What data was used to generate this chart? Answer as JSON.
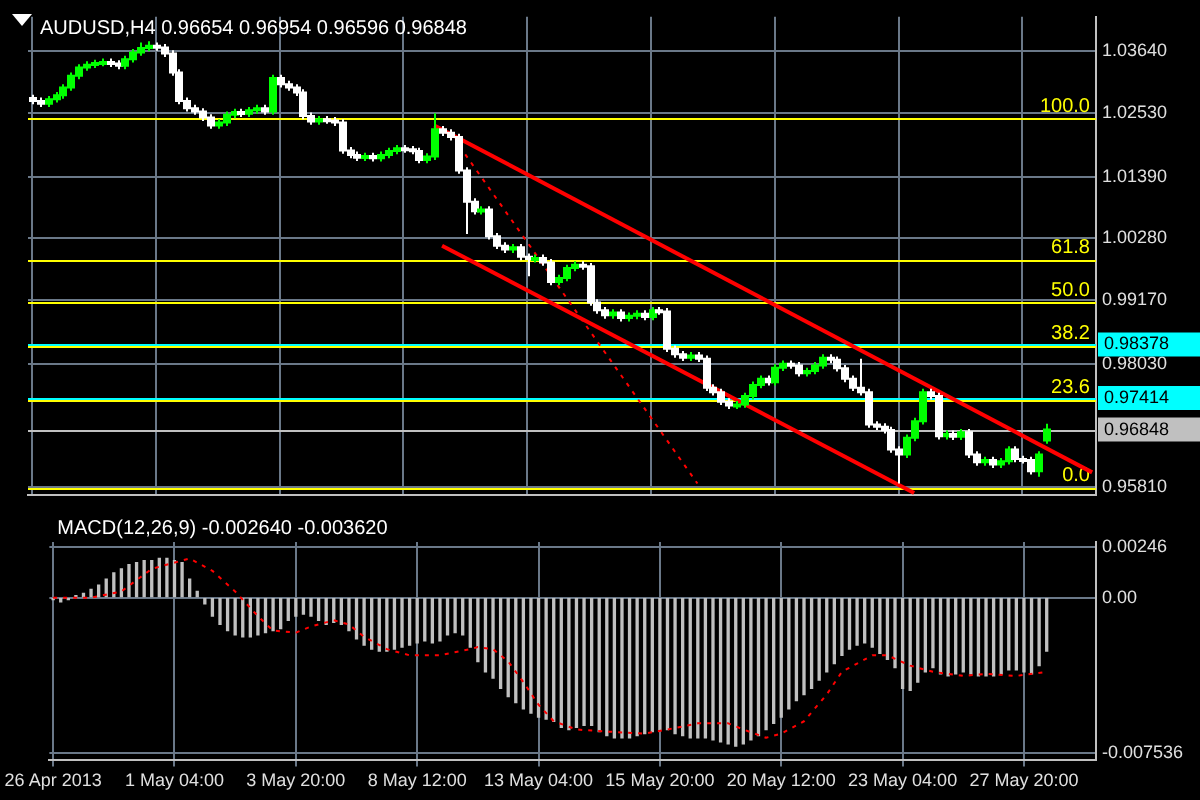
{
  "chart_data": [
    {
      "type": "candlestick",
      "title": "AUDUSD,H4 0.96654 0.96954 0.96596 0.96848",
      "colors": [
        "#ffffff",
        "#ffffff",
        "#00ff00",
        "#00ff00",
        "#00ff00",
        "#00ff00",
        "#00ff00",
        "#00ff00",
        "#00ff00",
        "#00ff00",
        "#ffffff",
        "#ffffff",
        "#00ff00",
        "#00ff00",
        "#00ff00",
        "#00ff00",
        "#ffffff",
        "#ffffff",
        "#ffffff",
        "#ffffff",
        "#ffffff",
        "#ffffff",
        "#ffffff",
        "#ffffff",
        "#00ff00",
        "#00ff00",
        "#00ff00",
        "#ffffff",
        "#00ff00",
        "#00ff00",
        "#ffffff",
        "#00ff00",
        "#ffffff",
        "#ffffff",
        "#ffffff",
        "#ffffff",
        "#ffffff",
        "#00ff00",
        "#ffffff",
        "#ffffff",
        "#ffffff",
        "#ffffff",
        "#ffffff",
        "#00ff00",
        "#ffffff",
        "#00ff00",
        "#00ff00",
        "#00ff00",
        "#ffffff",
        "#ffffff",
        "#ffffff",
        "#00ff00",
        "#00ff00",
        "#ffffff",
        "#ffffff",
        "#ffffff",
        "#ffffff",
        "#ffffff",
        "#00ff00",
        "#ffffff",
        "#ffffff",
        "#ffffff",
        "#00ff00",
        "#ffffff",
        "#ffffff",
        "#00ff00",
        "#ffffff",
        "#ffffff",
        "#00ff00",
        "#00ff00",
        "#00ff00",
        "#ffffff",
        "#ffffff",
        "#ffffff",
        "#ffffff",
        "#00ff00",
        "#ffffff",
        "#00ff00",
        "#00ff00",
        "#ffffff",
        "#00ff00",
        "#ffffff",
        "#ffffff",
        "#ffffff",
        "#ffffff",
        "#00ff00",
        "#ffffff",
        "#ffffff",
        "#ffffff",
        "#ffffff",
        "#ffffff",
        "#00ff00",
        "#00ff00",
        "#00ff00",
        "#00ff00",
        "#ffffff",
        "#00ff00",
        "#00ff00",
        "#ffffff",
        "#ffffff",
        "#00ff00",
        "#00ff00",
        "#00ff00",
        "#ffffff",
        "#ffffff",
        "#ffffff",
        "#ffffff",
        "#ffffff",
        "#ffffff",
        "#ffffff",
        "#ffffff",
        "#ffffff",
        "#ffffff",
        "#00ff00",
        "#00ff00",
        "#00ff00",
        "#ffffff",
        "#ffffff",
        "#00ff00",
        "#ffffff",
        "#00ff00",
        "#ffffff",
        "#ffffff",
        "#00ff00",
        "#ffffff",
        "#00ff00",
        "#00ff00",
        "#ffffff",
        "#ffffff",
        "#ffffff",
        "#00ff00",
        "#00ff00",
        null,
        null,
        null,
        null,
        null,
        null
      ],
      "categories": [
        null,
        null,
        null,
        null,
        null,
        null,
        null,
        null,
        null,
        null,
        null,
        null,
        null,
        null,
        null,
        null,
        null,
        null,
        null,
        null,
        null,
        null,
        null,
        null,
        null,
        null,
        null,
        null,
        null,
        null,
        null,
        null,
        null,
        null,
        null,
        null,
        null,
        null,
        null,
        null,
        null,
        null,
        null,
        null,
        null,
        null,
        null,
        null,
        null,
        null,
        null,
        null,
        null,
        null,
        null,
        null,
        null,
        null,
        null,
        null,
        null,
        null,
        null,
        null,
        null,
        null,
        null,
        null,
        null,
        null,
        null,
        null,
        null,
        null,
        null,
        null,
        null,
        null,
        null,
        null,
        null,
        null,
        null,
        null,
        null,
        null,
        null,
        null,
        null,
        null,
        null,
        null,
        null,
        null,
        null,
        null,
        null,
        null,
        null,
        null,
        null,
        null,
        null,
        null,
        null,
        null,
        null,
        null,
        null,
        null,
        null,
        null,
        null,
        null,
        null,
        null,
        null,
        null,
        null,
        null,
        null,
        null,
        null,
        null,
        null,
        null,
        null,
        null,
        null,
        null,
        null,
        null,
        null,
        null,
        null,
        null,
        null,
        null
      ],
      "ohlc": [
        [
          1.028,
          1.0286,
          1.0269,
          1.0275
        ],
        [
          1.0275,
          1.0281,
          1.0264,
          1.027
        ],
        [
          1.027,
          1.0284,
          1.0264,
          1.0278
        ],
        [
          1.0278,
          1.0291,
          1.0272,
          1.0285
        ],
        [
          1.0285,
          1.0305,
          1.0279,
          1.0299
        ],
        [
          1.0299,
          1.0326,
          1.0293,
          1.032
        ],
        [
          1.032,
          1.0341,
          1.0314,
          1.0335
        ],
        [
          1.0335,
          1.0346,
          1.0329,
          1.034
        ],
        [
          1.034,
          1.0349,
          1.0334,
          1.0343
        ],
        [
          1.0343,
          1.0351,
          1.0337,
          1.0345
        ],
        [
          1.0345,
          1.0351,
          1.0336,
          1.0342
        ],
        [
          1.0342,
          1.0348,
          1.0332,
          1.0338
        ],
        [
          1.0338,
          1.0356,
          1.0332,
          1.035
        ],
        [
          1.035,
          1.0368,
          1.0344,
          1.0362
        ],
        [
          1.0362,
          1.038,
          1.0356,
          1.037
        ],
        [
          1.037,
          1.0382,
          1.0364,
          1.0374
        ],
        [
          1.0374,
          1.038,
          1.0365,
          1.0371
        ],
        [
          1.0371,
          1.0377,
          1.0354,
          1.036
        ],
        [
          1.036,
          1.0366,
          1.032,
          1.0326
        ],
        [
          1.0326,
          1.0332,
          1.0269,
          1.0275
        ],
        [
          1.0275,
          1.0281,
          1.0256,
          1.0262
        ],
        [
          1.0262,
          1.0268,
          1.025,
          1.0256
        ],
        [
          1.0256,
          1.0262,
          1.0239,
          1.0245
        ],
        [
          1.0245,
          1.0251,
          1.0225,
          1.0231
        ],
        [
          1.0231,
          1.0242,
          1.0225,
          1.0236
        ],
        [
          1.0236,
          1.0256,
          1.023,
          1.025
        ],
        [
          1.025,
          1.0261,
          1.0244,
          1.0255
        ],
        [
          1.0255,
          1.0261,
          1.0246,
          1.0252
        ],
        [
          1.0252,
          1.0264,
          1.0246,
          1.0258
        ],
        [
          1.0258,
          1.0268,
          1.0252,
          1.0262
        ],
        [
          1.0262,
          1.0268,
          1.025,
          1.0256
        ],
        [
          1.0256,
          1.0322,
          1.025,
          1.0316
        ],
        [
          1.0316,
          1.0322,
          1.0299,
          1.0305
        ],
        [
          1.0305,
          1.0311,
          1.0293,
          1.0299
        ],
        [
          1.0299,
          1.0305,
          1.0284,
          1.029
        ],
        [
          1.029,
          1.0296,
          1.0242,
          1.0248
        ],
        [
          1.0248,
          1.0254,
          1.0232,
          1.0238
        ],
        [
          1.0238,
          1.0248,
          1.0232,
          1.0242
        ],
        [
          1.0242,
          1.0248,
          1.0234,
          1.024
        ],
        [
          1.024,
          1.0246,
          1.023,
          1.0236
        ],
        [
          1.0236,
          1.0242,
          1.018,
          1.0186
        ],
        [
          1.0186,
          1.0192,
          1.0172,
          1.0178
        ],
        [
          1.0178,
          1.0184,
          1.0167,
          1.0173
        ],
        [
          1.0173,
          1.0182,
          1.0167,
          1.0176
        ],
        [
          1.0176,
          1.0182,
          1.0166,
          1.0172
        ],
        [
          1.0172,
          1.0184,
          1.0166,
          1.0178
        ],
        [
          1.0178,
          1.0191,
          1.0172,
          1.0185
        ],
        [
          1.0185,
          1.0196,
          1.0179,
          1.019
        ],
        [
          1.019,
          1.0196,
          1.0182,
          1.0188
        ],
        [
          1.0188,
          1.0194,
          1.0179,
          1.0185
        ],
        [
          1.0185,
          1.0191,
          1.0163,
          1.0169
        ],
        [
          1.0169,
          1.0181,
          1.0163,
          1.0175
        ],
        [
          1.0175,
          1.0253,
          1.0169,
          1.0224
        ],
        [
          1.0224,
          1.023,
          1.0212,
          1.0218
        ],
        [
          1.0218,
          1.0224,
          1.0204,
          1.021
        ],
        [
          1.021,
          1.0216,
          1.0144,
          1.015
        ],
        [
          1.015,
          1.0156,
          1.0036,
          1.0094
        ],
        [
          1.0094,
          1.01,
          1.0071,
          1.0077
        ],
        [
          1.0077,
          1.0086,
          1.0071,
          1.008
        ],
        [
          1.008,
          1.0086,
          1.0026,
          1.0032
        ],
        [
          1.0032,
          1.0038,
          1.0009,
          1.0015
        ],
        [
          1.0015,
          1.0021,
          1.0002,
          1.0008
        ],
        [
          1.0008,
          1.0018,
          1.0002,
          1.0012
        ],
        [
          1.0012,
          1.0018,
          0.9989,
          0.9995
        ],
        [
          0.9995,
          1.0001,
          0.996,
          0.9991
        ],
        [
          0.9991,
          0.9999,
          0.9985,
          0.9993
        ],
        [
          0.9993,
          0.9999,
          0.9979,
          0.9985
        ],
        [
          0.9985,
          0.9991,
          0.9944,
          0.995
        ],
        [
          0.995,
          0.9963,
          0.9944,
          0.9957
        ],
        [
          0.9957,
          0.9981,
          0.9951,
          0.9975
        ],
        [
          0.9975,
          0.9987,
          0.9969,
          0.9981
        ],
        [
          0.9981,
          0.9987,
          0.9972,
          0.9978
        ],
        [
          0.9978,
          0.9984,
          0.9907,
          0.9913
        ],
        [
          0.9913,
          0.9919,
          0.9893,
          0.9899
        ],
        [
          0.9899,
          0.9905,
          0.9884,
          0.989
        ],
        [
          0.989,
          0.9901,
          0.9884,
          0.9895
        ],
        [
          0.9895,
          0.9901,
          0.9879,
          0.9885
        ],
        [
          0.9885,
          0.9895,
          0.9879,
          0.9889
        ],
        [
          0.9889,
          0.9899,
          0.9883,
          0.9893
        ],
        [
          0.9893,
          0.9899,
          0.9881,
          0.9887
        ],
        [
          0.9887,
          0.9905,
          0.9881,
          0.9899
        ],
        [
          0.9899,
          0.9905,
          0.9891,
          0.9897
        ],
        [
          0.9897,
          0.9903,
          0.9824,
          0.983
        ],
        [
          0.983,
          0.9836,
          0.9814,
          0.982
        ],
        [
          0.982,
          0.9826,
          0.9808,
          0.9814
        ],
        [
          0.9814,
          0.9824,
          0.9808,
          0.9818
        ],
        [
          0.9818,
          0.9824,
          0.9806,
          0.9812
        ],
        [
          0.9812,
          0.9818,
          0.9754,
          0.976
        ],
        [
          0.976,
          0.9766,
          0.9746,
          0.9752
        ],
        [
          0.9752,
          0.9758,
          0.9729,
          0.9735
        ],
        [
          0.9735,
          0.9741,
          0.9722,
          0.9728
        ],
        [
          0.9728,
          0.9736,
          0.9722,
          0.973
        ],
        [
          0.973,
          0.9751,
          0.9724,
          0.9745
        ],
        [
          0.9745,
          0.9771,
          0.9739,
          0.9765
        ],
        [
          0.9765,
          0.9782,
          0.9759,
          0.9776
        ],
        [
          0.9776,
          0.9782,
          0.9764,
          0.977
        ],
        [
          0.977,
          0.9802,
          0.9764,
          0.9796
        ],
        [
          0.9796,
          0.9809,
          0.979,
          0.9803
        ],
        [
          0.9803,
          0.9809,
          0.9794,
          0.98
        ],
        [
          0.98,
          0.9806,
          0.978,
          0.9786
        ],
        [
          0.9786,
          0.9796,
          0.978,
          0.979
        ],
        [
          0.979,
          0.9806,
          0.9784,
          0.98
        ],
        [
          0.98,
          0.982,
          0.9794,
          0.9814
        ],
        [
          0.9814,
          0.982,
          0.9804,
          0.981
        ],
        [
          0.981,
          0.9816,
          0.9789,
          0.9795
        ],
        [
          0.9795,
          0.9801,
          0.977,
          0.9776
        ],
        [
          0.9776,
          0.9782,
          0.9754,
          0.976
        ],
        [
          0.976,
          0.9812,
          0.9746,
          0.9752
        ],
        [
          0.9752,
          0.9758,
          0.9688,
          0.9694
        ],
        [
          0.9694,
          0.97,
          0.9684,
          0.969
        ],
        [
          0.969,
          0.9696,
          0.9678,
          0.9684
        ],
        [
          0.9684,
          0.969,
          0.9643,
          0.9649
        ],
        [
          0.9649,
          0.9655,
          0.9588,
          0.964
        ],
        [
          0.964,
          0.9676,
          0.9634,
          0.967
        ],
        [
          0.967,
          0.9706,
          0.9664,
          0.97
        ],
        [
          0.97,
          0.9758,
          0.9694,
          0.9752
        ],
        [
          0.9752,
          0.9758,
          0.9739,
          0.9745
        ],
        [
          0.9745,
          0.9751,
          0.9667,
          0.9673
        ],
        [
          0.9673,
          0.9683,
          0.9667,
          0.9677
        ],
        [
          0.9677,
          0.9683,
          0.9666,
          0.9672
        ],
        [
          0.9672,
          0.9686,
          0.9666,
          0.968
        ],
        [
          0.968,
          0.9686,
          0.9634,
          0.964
        ],
        [
          0.964,
          0.9646,
          0.962,
          0.9626
        ],
        [
          0.9626,
          0.9636,
          0.962,
          0.963
        ],
        [
          0.963,
          0.9636,
          0.9616,
          0.9622
        ],
        [
          0.9622,
          0.9634,
          0.9616,
          0.9628
        ],
        [
          0.9628,
          0.9655,
          0.9622,
          0.9649
        ],
        [
          0.9649,
          0.9655,
          0.9626,
          0.9632
        ],
        [
          0.9632,
          0.9638,
          0.9624,
          0.963
        ],
        [
          0.963,
          0.9636,
          0.9604,
          0.961
        ],
        [
          0.961,
          0.9646,
          0.96,
          0.964
        ],
        [
          0.96654,
          0.96954,
          0.96596,
          0.96848
        ],
        null,
        null,
        null,
        null,
        null,
        null
      ],
      "series": [
        {
          "type": "line",
          "color": "#ff0000",
          "line_style": "solid",
          "values": [
            null,
            null,
            null,
            null,
            null,
            null,
            null,
            null,
            null,
            null,
            null,
            null,
            null,
            null,
            null,
            null,
            null,
            null,
            null,
            null,
            null,
            null,
            null,
            null,
            null,
            null,
            null,
            null,
            null,
            null,
            null,
            null,
            null,
            null,
            null,
            null,
            null,
            null,
            null,
            null,
            null,
            null,
            null,
            null,
            null,
            null,
            null,
            null,
            null,
            null,
            null,
            null,
            1.0231,
            null,
            null,
            null,
            null,
            null,
            null,
            null,
            null,
            null,
            null,
            null,
            null,
            null,
            null,
            null,
            null,
            null,
            null,
            null,
            null,
            null,
            null,
            null,
            null,
            null,
            null,
            null,
            null,
            null,
            null,
            null,
            null,
            null,
            null,
            null,
            null,
            null,
            null,
            null,
            null,
            null,
            null,
            null,
            null,
            null,
            null,
            null,
            null,
            null,
            null,
            null,
            null,
            null,
            null,
            null,
            null,
            null,
            null,
            null,
            null,
            null,
            null,
            null,
            null,
            null,
            null,
            null,
            null,
            null,
            null,
            null,
            null,
            null,
            null,
            null,
            null,
            null,
            null,
            null,
            null,
            null,
            null,
            null,
            null,
            0.9608
          ]
        },
        {
          "type": "line",
          "color": "#ff0000",
          "line_style": "solid",
          "values": [
            null,
            null,
            null,
            null,
            null,
            null,
            null,
            null,
            null,
            null,
            null,
            null,
            null,
            null,
            null,
            null,
            null,
            null,
            null,
            null,
            null,
            null,
            null,
            null,
            null,
            null,
            null,
            null,
            null,
            null,
            null,
            null,
            null,
            null,
            null,
            null,
            null,
            null,
            null,
            null,
            null,
            null,
            null,
            null,
            null,
            null,
            null,
            null,
            null,
            null,
            null,
            null,
            null,
            1.0015,
            null,
            null,
            null,
            null,
            null,
            null,
            null,
            null,
            null,
            null,
            null,
            null,
            null,
            null,
            null,
            null,
            null,
            null,
            null,
            null,
            null,
            null,
            null,
            null,
            null,
            null,
            null,
            null,
            null,
            null,
            null,
            null,
            null,
            null,
            null,
            null,
            null,
            null,
            null,
            null,
            null,
            null,
            null,
            null,
            null,
            null,
            null,
            null,
            null,
            null,
            null,
            null,
            null,
            null,
            null,
            null,
            null,
            null,
            null,
            null,
            0.9571,
            null,
            null,
            null,
            null,
            null,
            null,
            null,
            null,
            null,
            null,
            null,
            null,
            null,
            null,
            null,
            null,
            null,
            null,
            null,
            null,
            null,
            null,
            null
          ]
        },
        {
          "type": "line",
          "color": "#ff0000",
          "line_style": "dotted",
          "values": [
            null,
            null,
            null,
            null,
            null,
            null,
            null,
            null,
            null,
            null,
            null,
            null,
            null,
            null,
            null,
            null,
            null,
            null,
            null,
            null,
            null,
            null,
            null,
            null,
            null,
            null,
            null,
            null,
            null,
            null,
            null,
            null,
            null,
            null,
            null,
            null,
            null,
            null,
            null,
            null,
            null,
            null,
            null,
            null,
            null,
            null,
            null,
            null,
            null,
            null,
            null,
            null,
            null,
            null,
            null,
            null,
            1.0179,
            null,
            null,
            null,
            null,
            null,
            null,
            null,
            null,
            null,
            null,
            null,
            null,
            null,
            null,
            null,
            null,
            null,
            null,
            null,
            null,
            null,
            null,
            null,
            null,
            null,
            null,
            null,
            null,
            null,
            0.9588,
            null,
            null,
            null,
            null,
            null,
            null,
            null,
            null,
            null,
            null,
            null,
            null,
            null,
            null,
            null,
            null,
            null,
            null,
            null,
            null,
            null,
            null,
            null,
            null,
            null,
            null,
            null,
            null,
            null,
            null,
            null,
            null,
            null,
            null,
            null,
            null,
            null,
            null,
            null,
            null,
            null,
            null,
            null,
            null,
            null,
            null,
            null,
            null,
            null,
            null,
            null
          ]
        }
      ],
      "ylim": [
        0.9567,
        1.0426
      ],
      "yticks": [
        {
          "value": 1.0364,
          "label": "1.03640"
        },
        {
          "value": 1.0253,
          "label": "1.02530"
        },
        {
          "value": 1.0139,
          "label": "1.01390"
        },
        {
          "value": 1.0028,
          "label": "1.00280"
        },
        {
          "value": 0.9917,
          "label": "0.99170"
        },
        {
          "value": 0.9803,
          "label": "0.98030"
        },
        {
          "value": 0.9581,
          "label": "0.95810"
        }
      ],
      "ref_lines": [
        {
          "axis": "y",
          "value": 1.0244,
          "color": "#ffff00"
        },
        {
          "axis": "y",
          "value": 0.9991,
          "color": "#ffff00"
        },
        {
          "axis": "y",
          "value": 0.9913,
          "color": "#ffff00"
        },
        {
          "axis": "y",
          "value": 0.9835,
          "color": "#ffff00"
        },
        {
          "axis": "y",
          "value": 0.9738,
          "color": "#ffff00"
        },
        {
          "axis": "y",
          "value": 0.9581,
          "color": "#ffff00"
        },
        {
          "axis": "y",
          "value": 0.98378,
          "label": "0.98378",
          "color": "#00ffff"
        },
        {
          "axis": "y",
          "value": 0.97414,
          "label": "0.97414",
          "color": "#00ffff"
        },
        {
          "axis": "y",
          "value": 0.96848,
          "label": "0.96848",
          "color": "#c0c0c0"
        }
      ],
      "annotations": [
        {
          "text": "100.0",
          "y": 1.0244
        },
        {
          "text": "61.8",
          "y": 0.9991
        },
        {
          "text": "50.0",
          "y": 0.9913
        },
        {
          "text": "38.2",
          "y": 0.9835
        },
        {
          "text": "23.6",
          "y": 0.9738
        },
        {
          "text": "0.0",
          "y": 0.9581
        }
      ],
      "grid": true,
      "tick_labels": "y"
    },
    {
      "type": "bar",
      "title": "MACD(12,26,9) -0.002640 -0.003620",
      "categories": [
        "26 Apr 2013",
        null,
        null,
        null,
        null,
        null,
        null,
        null,
        null,
        null,
        null,
        null,
        null,
        null,
        null,
        null,
        "1 May 04:00",
        null,
        null,
        null,
        null,
        null,
        null,
        null,
        null,
        null,
        null,
        null,
        null,
        null,
        null,
        null,
        "3 May 20:00",
        null,
        null,
        null,
        null,
        null,
        null,
        null,
        null,
        null,
        null,
        null,
        null,
        null,
        null,
        null,
        "8 May 12:00",
        null,
        null,
        null,
        null,
        null,
        null,
        null,
        null,
        null,
        null,
        null,
        null,
        null,
        null,
        null,
        "13 May 04:00",
        null,
        null,
        null,
        null,
        null,
        null,
        null,
        null,
        null,
        null,
        null,
        null,
        null,
        null,
        null,
        "15 May 20:00",
        null,
        null,
        null,
        null,
        null,
        null,
        null,
        null,
        null,
        null,
        null,
        null,
        null,
        null,
        null,
        "20 May 12:00",
        null,
        null,
        null,
        null,
        null,
        null,
        null,
        null,
        null,
        null,
        null,
        null,
        null,
        null,
        null,
        "23 May 04:00",
        null,
        null,
        null,
        null,
        null,
        null,
        null,
        null,
        null,
        null,
        null,
        null,
        null,
        null,
        null,
        "27 May 20:00",
        null,
        null,
        null,
        null,
        null,
        null,
        null,
        null,
        null
      ],
      "series": [
        {
          "type": "bar",
          "color": "#c0c0c0",
          "values": [
            -0.0001,
            -0.0002,
            -0.0001,
            0.0001,
            0.0002,
            0.0004,
            0.0006,
            0.0009,
            0.0012,
            0.0014,
            0.0016,
            0.0017,
            0.0018,
            0.0018,
            0.0019,
            0.0019,
            0.0018,
            0.0017,
            0.0009,
            0.0003,
            -0.0003,
            -0.0009,
            -0.0013,
            -0.0016,
            -0.0018,
            -0.0019,
            -0.0019,
            -0.0018,
            -0.0017,
            -0.0016,
            -0.0015,
            -0.0011,
            -0.0009,
            -0.0008,
            -0.0009,
            -0.0011,
            -0.0013,
            -0.0012,
            -0.0013,
            -0.0016,
            -0.002,
            -0.0023,
            -0.0025,
            -0.0026,
            -0.0026,
            -0.0025,
            -0.0024,
            -0.0023,
            -0.0022,
            -0.0021,
            -0.0022,
            -0.0021,
            -0.0018,
            -0.0017,
            -0.0018,
            -0.0024,
            -0.0031,
            -0.0036,
            -0.0039,
            -0.0044,
            -0.0048,
            -0.0051,
            -0.0054,
            -0.0056,
            -0.0058,
            -0.0059,
            -0.006,
            -0.0063,
            -0.0064,
            -0.0063,
            -0.0062,
            -0.0062,
            -0.0065,
            -0.0067,
            -0.0068,
            -0.0068,
            -0.0068,
            -0.0067,
            -0.0066,
            -0.0065,
            -0.0064,
            -0.0064,
            -0.0066,
            -0.0067,
            -0.0068,
            -0.0068,
            -0.0068,
            -0.0069,
            -0.007,
            -0.0071,
            -0.0072,
            -0.0071,
            -0.0069,
            -0.0067,
            -0.0064,
            -0.0061,
            -0.0058,
            -0.0054,
            -0.005,
            -0.0047,
            -0.0044,
            -0.004,
            -0.0036,
            -0.0032,
            -0.0028,
            -0.0025,
            -0.0023,
            -0.0022,
            -0.0024,
            -0.0027,
            -0.003,
            -0.0034,
            -0.0044,
            -0.0045,
            -0.0041,
            -0.0036,
            -0.0034,
            -0.0037,
            -0.0038,
            -0.0037,
            -0.0036,
            -0.0037,
            -0.0038,
            -0.0038,
            -0.0038,
            -0.0037,
            -0.0035,
            -0.0035,
            -0.0036,
            -0.0037,
            -0.0033,
            -0.0026,
            null,
            null,
            null,
            null,
            null,
            null
          ]
        },
        {
          "type": "line",
          "color": "#ff0000",
          "line_style": "dotted",
          "values": [
            0,
            null,
            null,
            null,
            null,
            0,
            null,
            null,
            null,
            0.0003,
            null,
            null,
            null,
            0.0014,
            null,
            null,
            null,
            null,
            0.0019,
            null,
            null,
            0.0013,
            null,
            null,
            0.0003,
            null,
            null,
            -0.0009,
            null,
            -0.0016,
            null,
            null,
            -0.0017,
            null,
            -0.0014,
            null,
            null,
            -0.0011,
            null,
            -0.0013,
            null,
            -0.0019,
            null,
            null,
            -0.0025,
            null,
            null,
            -0.0028,
            null,
            null,
            null,
            -0.0028,
            null,
            null,
            null,
            -0.0025,
            -0.0024,
            null,
            -0.0025,
            null,
            -0.0031,
            null,
            -0.0041,
            null,
            -0.0052,
            null,
            -0.006,
            null,
            null,
            -0.0064,
            null,
            null,
            null,
            -0.0065,
            null,
            null,
            null,
            null,
            -0.0066,
            null,
            null,
            -0.0064,
            null,
            null,
            null,
            -0.0061,
            null,
            null,
            null,
            -0.0061,
            null,
            -0.0064,
            null,
            null,
            -0.0068,
            null,
            -0.0066,
            null,
            null,
            -0.006,
            null,
            null,
            -0.0047,
            null,
            -0.0036,
            null,
            null,
            null,
            -0.0028,
            null,
            -0.0028,
            null,
            null,
            -0.0033,
            null,
            null,
            -0.0036,
            null,
            null,
            null,
            -0.0038,
            null,
            null,
            -0.0037,
            null,
            null,
            null,
            -0.0038,
            null,
            null,
            null,
            -0.0036,
            null,
            null,
            null,
            null,
            null,
            null
          ]
        }
      ],
      "ylim": [
        -0.0079,
        0.0027
      ],
      "yticks": [
        {
          "value": 0.00246,
          "label": "0.00246"
        },
        {
          "value": 0,
          "label": "0.00"
        },
        {
          "value": -0.007536,
          "label": "-0.007536"
        }
      ],
      "grid": true
    }
  ]
}
